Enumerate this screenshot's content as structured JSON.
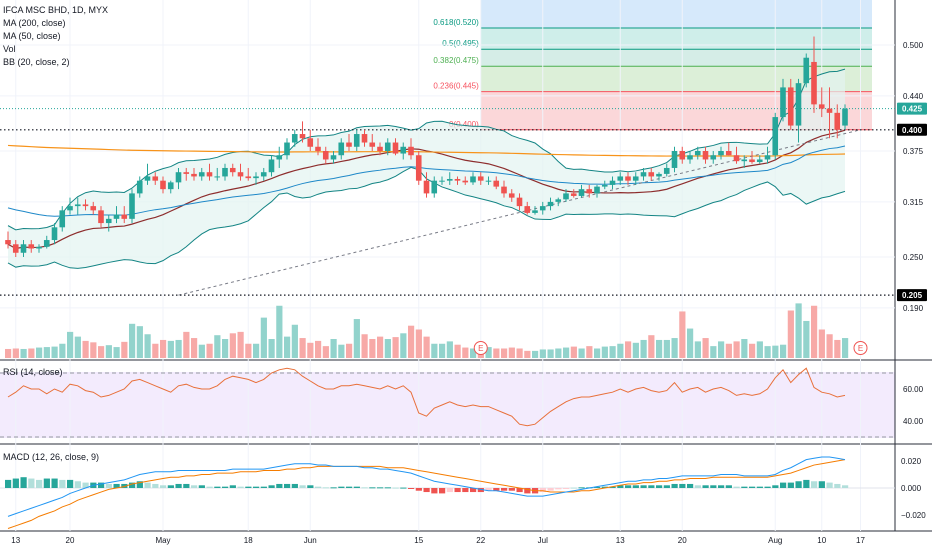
{
  "legend": {
    "symbol": "IFCA MSC BHD, 1D, MYX",
    "ma200": "MA (200, close)",
    "ma50": "MA (50, close)",
    "vol": "Vol",
    "bb": "BB (20, close, 2)",
    "rsi": "RSI (14, close)",
    "macd": "MACD (12, 26, close, 9)"
  },
  "colors": {
    "up": "#26a69a",
    "down": "#ef5350",
    "ma200": "#f7931a",
    "ma50": "#1e88c8",
    "bb_basis": "#8d2d2d",
    "bb_band": "#138484",
    "rsi_line": "#e8703a",
    "macd_line": "#2196f3",
    "signal_line": "#f57c00"
  },
  "chart_data": [
    {
      "type": "candlestick",
      "title": "IFCA MSC BHD, 1D, MYX",
      "price_axis_ticks": [
        0.5,
        0.44,
        0.375,
        0.315,
        0.25,
        0.19
      ],
      "price_labels": [
        {
          "value": 0.425,
          "text": "0.425",
          "color": "#26a69a"
        },
        {
          "value": 0.4,
          "text": "0.400",
          "color": "#000000"
        },
        {
          "value": 0.205,
          "text": "0.205",
          "color": "#000000"
        }
      ],
      "x_ticks": [
        "13",
        "20",
        "May",
        "18",
        "Jun",
        "15",
        "22",
        "Jul",
        "13",
        "20",
        "Aug",
        "10",
        "17"
      ],
      "fib_levels": [
        {
          "ratio": "0(0.400)",
          "value": 0.4
        },
        {
          "ratio": "0.236(0.445)",
          "value": 0.445
        },
        {
          "ratio": "0.382(0.475)",
          "value": 0.475
        },
        {
          "ratio": "0.5(0.495)",
          "value": 0.495
        },
        {
          "ratio": "0.618(0.520)",
          "value": 0.52
        }
      ],
      "ohlc": [
        [
          0.27,
          0.28,
          0.26,
          0.265
        ],
        [
          0.265,
          0.27,
          0.25,
          0.255
        ],
        [
          0.255,
          0.27,
          0.25,
          0.265
        ],
        [
          0.265,
          0.27,
          0.255,
          0.26
        ],
        [
          0.26,
          0.265,
          0.255,
          0.262
        ],
        [
          0.262,
          0.275,
          0.26,
          0.27
        ],
        [
          0.27,
          0.29,
          0.265,
          0.285
        ],
        [
          0.285,
          0.31,
          0.28,
          0.305
        ],
        [
          0.305,
          0.32,
          0.3,
          0.31
        ],
        [
          0.31,
          0.32,
          0.3,
          0.312
        ],
        [
          0.312,
          0.318,
          0.305,
          0.31
        ],
        [
          0.31,
          0.315,
          0.3,
          0.305
        ],
        [
          0.305,
          0.31,
          0.285,
          0.29
        ],
        [
          0.29,
          0.3,
          0.28,
          0.295
        ],
        [
          0.295,
          0.31,
          0.29,
          0.3
        ],
        [
          0.3,
          0.31,
          0.29,
          0.295
        ],
        [
          0.295,
          0.33,
          0.29,
          0.325
        ],
        [
          0.325,
          0.345,
          0.32,
          0.34
        ],
        [
          0.34,
          0.36,
          0.335,
          0.345
        ],
        [
          0.345,
          0.35,
          0.335,
          0.34
        ],
        [
          0.34,
          0.345,
          0.325,
          0.33
        ],
        [
          0.33,
          0.34,
          0.325,
          0.338
        ],
        [
          0.338,
          0.355,
          0.33,
          0.35
        ],
        [
          0.35,
          0.355,
          0.34,
          0.348
        ],
        [
          0.348,
          0.355,
          0.34,
          0.345
        ],
        [
          0.345,
          0.355,
          0.34,
          0.35
        ],
        [
          0.35,
          0.36,
          0.34,
          0.345
        ],
        [
          0.345,
          0.355,
          0.34,
          0.345
        ],
        [
          0.345,
          0.36,
          0.34,
          0.355
        ],
        [
          0.355,
          0.36,
          0.345,
          0.35
        ],
        [
          0.35,
          0.36,
          0.34,
          0.345
        ],
        [
          0.345,
          0.355,
          0.34,
          0.343
        ],
        [
          0.343,
          0.35,
          0.335,
          0.345
        ],
        [
          0.345,
          0.355,
          0.34,
          0.35
        ],
        [
          0.35,
          0.37,
          0.345,
          0.365
        ],
        [
          0.365,
          0.38,
          0.355,
          0.37
        ],
        [
          0.37,
          0.39,
          0.365,
          0.385
        ],
        [
          0.385,
          0.4,
          0.38,
          0.395
        ],
        [
          0.395,
          0.41,
          0.385,
          0.39
        ],
        [
          0.39,
          0.4,
          0.375,
          0.38
        ],
        [
          0.38,
          0.39,
          0.37,
          0.375
        ],
        [
          0.375,
          0.38,
          0.36,
          0.365
        ],
        [
          0.365,
          0.375,
          0.36,
          0.37
        ],
        [
          0.37,
          0.39,
          0.365,
          0.385
        ],
        [
          0.385,
          0.395,
          0.375,
          0.38
        ],
        [
          0.38,
          0.4,
          0.375,
          0.395
        ],
        [
          0.395,
          0.4,
          0.38,
          0.385
        ],
        [
          0.385,
          0.395,
          0.375,
          0.38
        ],
        [
          0.38,
          0.385,
          0.37,
          0.375
        ],
        [
          0.375,
          0.39,
          0.37,
          0.385
        ],
        [
          0.385,
          0.39,
          0.37,
          0.372
        ],
        [
          0.372,
          0.385,
          0.365,
          0.38
        ],
        [
          0.38,
          0.39,
          0.365,
          0.37
        ],
        [
          0.37,
          0.375,
          0.335,
          0.34
        ],
        [
          0.34,
          0.35,
          0.32,
          0.325
        ],
        [
          0.325,
          0.345,
          0.32,
          0.34
        ],
        [
          0.34,
          0.345,
          0.335,
          0.34
        ],
        [
          0.34,
          0.35,
          0.335,
          0.342
        ],
        [
          0.342,
          0.345,
          0.335,
          0.34
        ],
        [
          0.34,
          0.345,
          0.335,
          0.338
        ],
        [
          0.338,
          0.35,
          0.335,
          0.345
        ],
        [
          0.345,
          0.35,
          0.335,
          0.34
        ],
        [
          0.34,
          0.345,
          0.335,
          0.34
        ],
        [
          0.34,
          0.345,
          0.33,
          0.333
        ],
        [
          0.333,
          0.34,
          0.32,
          0.325
        ],
        [
          0.325,
          0.33,
          0.315,
          0.32
        ],
        [
          0.32,
          0.325,
          0.305,
          0.31
        ],
        [
          0.31,
          0.315,
          0.3,
          0.302
        ],
        [
          0.302,
          0.31,
          0.3,
          0.305
        ],
        [
          0.305,
          0.315,
          0.3,
          0.31
        ],
        [
          0.31,
          0.32,
          0.305,
          0.315
        ],
        [
          0.315,
          0.32,
          0.31,
          0.318
        ],
        [
          0.318,
          0.33,
          0.315,
          0.325
        ],
        [
          0.325,
          0.33,
          0.32,
          0.322
        ],
        [
          0.322,
          0.335,
          0.32,
          0.33
        ],
        [
          0.33,
          0.335,
          0.32,
          0.325
        ],
        [
          0.325,
          0.335,
          0.32,
          0.333
        ],
        [
          0.333,
          0.34,
          0.33,
          0.335
        ],
        [
          0.335,
          0.345,
          0.33,
          0.34
        ],
        [
          0.34,
          0.35,
          0.335,
          0.345
        ],
        [
          0.345,
          0.35,
          0.335,
          0.34
        ],
        [
          0.34,
          0.35,
          0.335,
          0.345
        ],
        [
          0.345,
          0.355,
          0.34,
          0.35
        ],
        [
          0.35,
          0.355,
          0.34,
          0.345
        ],
        [
          0.345,
          0.35,
          0.34,
          0.348
        ],
        [
          0.348,
          0.36,
          0.345,
          0.355
        ],
        [
          0.355,
          0.38,
          0.35,
          0.375
        ],
        [
          0.375,
          0.38,
          0.36,
          0.365
        ],
        [
          0.365,
          0.375,
          0.36,
          0.37
        ],
        [
          0.37,
          0.38,
          0.365,
          0.375
        ],
        [
          0.375,
          0.38,
          0.36,
          0.365
        ],
        [
          0.365,
          0.375,
          0.36,
          0.37
        ],
        [
          0.37,
          0.38,
          0.365,
          0.375
        ],
        [
          0.375,
          0.385,
          0.37,
          0.37
        ],
        [
          0.37,
          0.38,
          0.36,
          0.363
        ],
        [
          0.363,
          0.37,
          0.355,
          0.365
        ],
        [
          0.365,
          0.375,
          0.36,
          0.362
        ],
        [
          0.362,
          0.37,
          0.36,
          0.365
        ],
        [
          0.365,
          0.38,
          0.36,
          0.37
        ],
        [
          0.37,
          0.42,
          0.365,
          0.415
        ],
        [
          0.415,
          0.46,
          0.41,
          0.45
        ],
        [
          0.45,
          0.46,
          0.4,
          0.405
        ],
        [
          0.405,
          0.46,
          0.385,
          0.455
        ],
        [
          0.455,
          0.49,
          0.45,
          0.485
        ],
        [
          0.48,
          0.51,
          0.42,
          0.43
        ],
        [
          0.43,
          0.45,
          0.415,
          0.425
        ],
        [
          0.425,
          0.45,
          0.39,
          0.42
        ],
        [
          0.42,
          0.43,
          0.39,
          0.4
        ],
        [
          0.405,
          0.43,
          0.4,
          0.425
        ]
      ],
      "volume": [
        0.19,
        0.2,
        0.19,
        0.2,
        0.22,
        0.23,
        0.24,
        0.3,
        0.55,
        0.45,
        0.36,
        0.33,
        0.25,
        0.27,
        0.23,
        0.34,
        0.72,
        0.67,
        0.5,
        0.3,
        0.38,
        0.36,
        0.38,
        0.55,
        0.42,
        0.28,
        0.3,
        0.48,
        0.4,
        0.52,
        0.55,
        0.3,
        0.3,
        0.85,
        0.4,
        1.1,
        0.45,
        0.7,
        0.42,
        0.32,
        0.36,
        0.25,
        0.4,
        0.28,
        0.3,
        0.82,
        0.5,
        0.4,
        0.45,
        0.4,
        0.44,
        0.52,
        0.68,
        0.6,
        0.45,
        0.3,
        0.3,
        0.35,
        0.28,
        0.22,
        0.2,
        0.18,
        0.23,
        0.2,
        0.2,
        0.22,
        0.2,
        0.15,
        0.15,
        0.18,
        0.18,
        0.2,
        0.22,
        0.24,
        0.2,
        0.25,
        0.2,
        0.24,
        0.25,
        0.3,
        0.35,
        0.32,
        0.38,
        0.48,
        0.38,
        0.38,
        0.42,
        0.98,
        0.62,
        0.35,
        0.42,
        0.25,
        0.35,
        0.3,
        0.35,
        0.4,
        0.3,
        0.35,
        0.25,
        0.26,
        0.28,
        1.0,
        1.15,
        0.78,
        1.1,
        0.6,
        0.5,
        0.38,
        0.42
      ],
      "volume_events": [
        {
          "index": 61,
          "label": "E"
        },
        {
          "index": 110,
          "label": "E"
        }
      ]
    },
    {
      "type": "line",
      "title": "RSI (14, close)",
      "y_ticks": [
        60,
        40
      ],
      "bands": [
        70,
        30
      ],
      "values": [
        55,
        58,
        62,
        60,
        60,
        57,
        60,
        58,
        63,
        62,
        59,
        58,
        55,
        56,
        58,
        60,
        65,
        66,
        64,
        62,
        60,
        58,
        62,
        63,
        61,
        60,
        60,
        62,
        66,
        68,
        67,
        66,
        64,
        66,
        70,
        72,
        73,
        72,
        68,
        65,
        62,
        60,
        60,
        62,
        62,
        63,
        62,
        61,
        60,
        62,
        60,
        62,
        58,
        45,
        43,
        48,
        50,
        52,
        50,
        49,
        50,
        49,
        49,
        47,
        45,
        43,
        38,
        37,
        38,
        42,
        46,
        49,
        52,
        54,
        55,
        55,
        56,
        57,
        58,
        60,
        58,
        60,
        61,
        59,
        58,
        59,
        64,
        58,
        60,
        61,
        58,
        60,
        61,
        59,
        56,
        57,
        56,
        57,
        60,
        67,
        72,
        64,
        69,
        73,
        61,
        58,
        57,
        55,
        56
      ]
    },
    {
      "type": "bar",
      "title": "MACD (12, 26, close, 9)",
      "y_ticks": [
        0.02,
        0.0,
        -0.02
      ],
      "histogram": [
        0.006,
        0.007,
        0.008,
        0.007,
        0.006,
        0.007,
        0.007,
        0.006,
        0.006,
        0.005,
        0.004,
        0.004,
        0.004,
        0.003,
        0.003,
        0.003,
        0.004,
        0.005,
        0.004,
        0.003,
        0.002,
        0.002,
        0.003,
        0.003,
        0.002,
        0.002,
        0.001,
        0.001,
        0.001,
        0.002,
        0.001,
        0.001,
        0.001,
        0.001,
        0.002,
        0.003,
        0.003,
        0.003,
        0.002,
        0.002,
        0.001,
        0.0005,
        0.0005,
        0.001,
        0.001,
        0.001,
        0.0005,
        0.0005,
        0.0005,
        0.0005,
        0.0003,
        0.0003,
        -0.0005,
        -0.002,
        -0.003,
        -0.004,
        -0.004,
        -0.003,
        -0.003,
        -0.003,
        -0.003,
        -0.003,
        -0.002,
        -0.002,
        -0.002,
        -0.002,
        -0.003,
        -0.004,
        -0.004,
        -0.003,
        -0.002,
        -0.001,
        -0.0005,
        0.0003,
        0.0005,
        0.0005,
        0.0008,
        0.001,
        0.001,
        0.002,
        0.002,
        0.002,
        0.002,
        0.002,
        0.002,
        0.002,
        0.003,
        0.003,
        0.003,
        0.002,
        0.002,
        0.002,
        0.002,
        0.002,
        0.001,
        0.001,
        0.001,
        0.001,
        0.001,
        0.002,
        0.004,
        0.004,
        0.005,
        0.006,
        0.005,
        0.005,
        0.004,
        0.003,
        0.002
      ],
      "macd_line": [
        -0.021,
        -0.019,
        -0.017,
        -0.015,
        -0.013,
        -0.011,
        -0.009,
        -0.007,
        -0.004,
        -0.002,
        0.0,
        0.002,
        0.003,
        0.004,
        0.005,
        0.006,
        0.008,
        0.01,
        0.011,
        0.012,
        0.012,
        0.012,
        0.013,
        0.013,
        0.013,
        0.013,
        0.013,
        0.013,
        0.013,
        0.014,
        0.014,
        0.014,
        0.014,
        0.014,
        0.015,
        0.016,
        0.017,
        0.018,
        0.018,
        0.018,
        0.017,
        0.017,
        0.016,
        0.016,
        0.016,
        0.016,
        0.015,
        0.015,
        0.014,
        0.014,
        0.013,
        0.012,
        0.011,
        0.009,
        0.007,
        0.005,
        0.004,
        0.003,
        0.002,
        0.001,
        0.0,
        -0.001,
        -0.002,
        -0.002,
        -0.003,
        -0.004,
        -0.005,
        -0.006,
        -0.006,
        -0.006,
        -0.005,
        -0.004,
        -0.003,
        -0.002,
        -0.001,
        0.0,
        0.001,
        0.002,
        0.003,
        0.004,
        0.005,
        0.005,
        0.006,
        0.006,
        0.007,
        0.007,
        0.008,
        0.009,
        0.009,
        0.009,
        0.009,
        0.009,
        0.01,
        0.01,
        0.01,
        0.009,
        0.009,
        0.009,
        0.009,
        0.01,
        0.013,
        0.015,
        0.018,
        0.021,
        0.022,
        0.023,
        0.023,
        0.022,
        0.021
      ],
      "signal_line": [
        -0.03,
        -0.028,
        -0.026,
        -0.024,
        -0.021,
        -0.019,
        -0.017,
        -0.014,
        -0.012,
        -0.009,
        -0.007,
        -0.005,
        -0.003,
        -0.001,
        0.0,
        0.001,
        0.003,
        0.004,
        0.005,
        0.006,
        0.007,
        0.008,
        0.008,
        0.009,
        0.009,
        0.01,
        0.01,
        0.011,
        0.011,
        0.011,
        0.012,
        0.012,
        0.012,
        0.013,
        0.013,
        0.013,
        0.014,
        0.014,
        0.015,
        0.015,
        0.016,
        0.016,
        0.016,
        0.016,
        0.016,
        0.016,
        0.016,
        0.016,
        0.016,
        0.015,
        0.015,
        0.015,
        0.014,
        0.013,
        0.012,
        0.011,
        0.01,
        0.009,
        0.008,
        0.007,
        0.006,
        0.005,
        0.004,
        0.003,
        0.002,
        0.001,
        0.0,
        -0.001,
        -0.002,
        -0.002,
        -0.003,
        -0.003,
        -0.003,
        -0.003,
        -0.002,
        -0.002,
        -0.001,
        0.0,
        0.001,
        0.002,
        0.003,
        0.003,
        0.004,
        0.004,
        0.005,
        0.005,
        0.006,
        0.006,
        0.007,
        0.007,
        0.007,
        0.008,
        0.008,
        0.008,
        0.008,
        0.008,
        0.008,
        0.008,
        0.008,
        0.009,
        0.01,
        0.011,
        0.013,
        0.015,
        0.017,
        0.018,
        0.019,
        0.02,
        0.021
      ]
    }
  ]
}
